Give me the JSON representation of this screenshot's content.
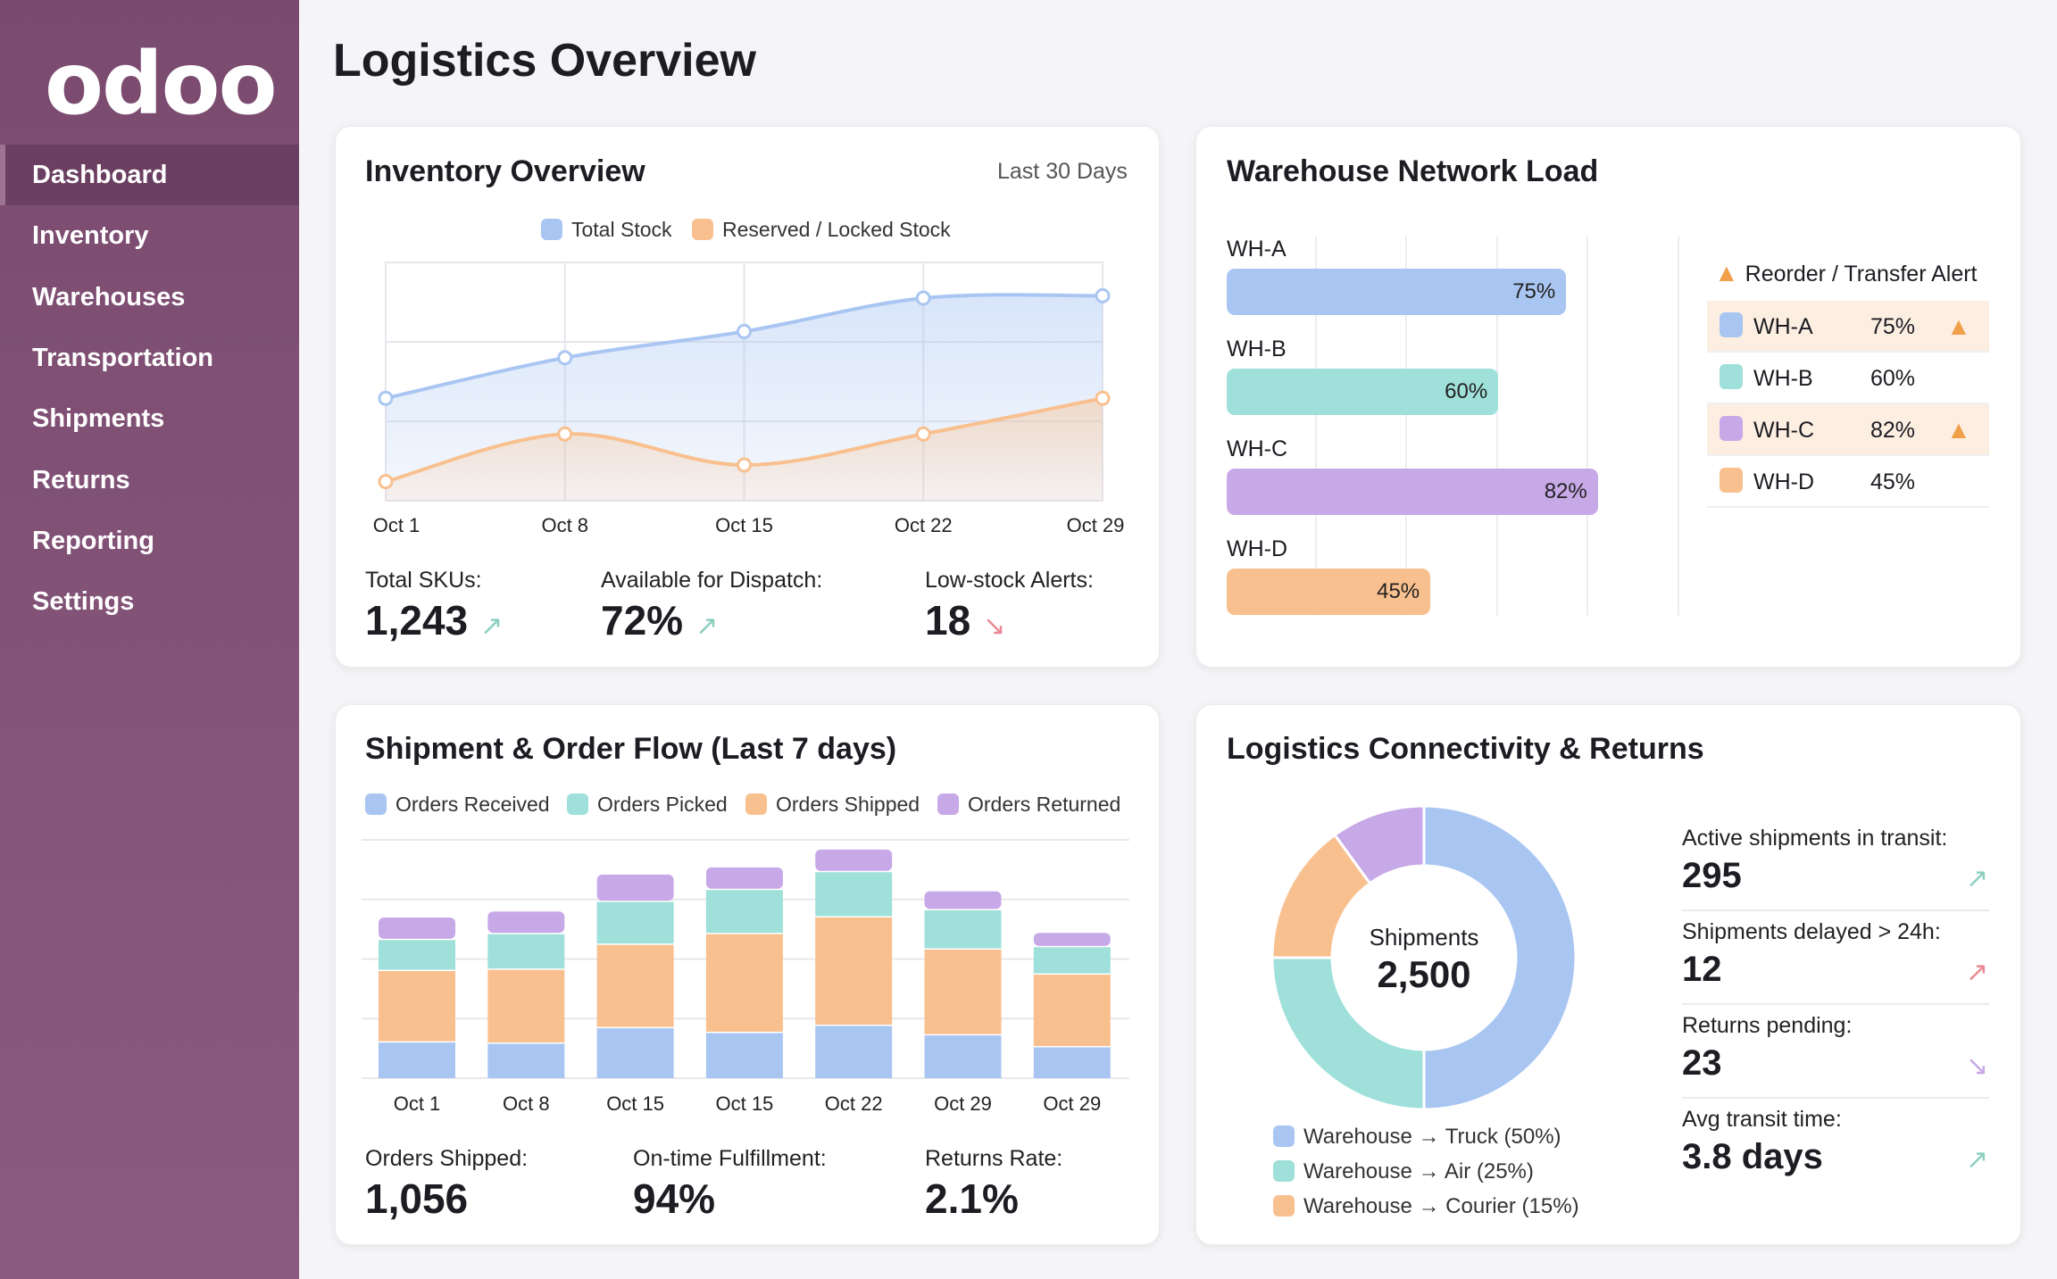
{
  "app": {
    "logo": "odoo",
    "page_title": "Logistics Overview"
  },
  "sidebar": {
    "items": [
      {
        "label": "Dashboard",
        "active": true
      },
      {
        "label": "Inventory"
      },
      {
        "label": "Warehouses"
      },
      {
        "label": "Transportation"
      },
      {
        "label": "Shipments"
      },
      {
        "label": "Returns"
      },
      {
        "label": "Reporting"
      },
      {
        "label": "Settings"
      }
    ]
  },
  "colors": {
    "blue": "#a9c6f2",
    "teal": "#9fe0da",
    "orange": "#f9c08f",
    "purple": "#c8a9e8",
    "sidebar": "#7a4b6f",
    "up": "#8ccfc0",
    "down": "#e98a92",
    "warn": "#f0a04b"
  },
  "inventory": {
    "title": "Inventory Overview",
    "range": "Last 30 Days",
    "stats": [
      {
        "label": "Total SKUs:",
        "value": "1,243",
        "trend": "up",
        "icon": "↗"
      },
      {
        "label": "Available for Dispatch:",
        "value": "72%",
        "trend": "up",
        "icon": "↗"
      },
      {
        "label": "Low-stock Alerts:",
        "value": "18",
        "trend": "down",
        "icon": "↘"
      }
    ]
  },
  "warehouse": {
    "title": "Warehouse Network Load",
    "alert_title": "Reorder / Transfer Alert",
    "rows": [
      {
        "name": "WH-A",
        "value": 75,
        "label": "75%",
        "alert": true,
        "color": "#a9c6f2"
      },
      {
        "name": "WH-B",
        "value": 60,
        "label": "60%",
        "alert": false,
        "color": "#9fe0da"
      },
      {
        "name": "WH-C",
        "value": 82,
        "label": "82%",
        "alert": true,
        "color": "#c8a9e8"
      },
      {
        "name": "WH-D",
        "value": 45,
        "label": "45%",
        "alert": false,
        "color": "#f9c08f"
      }
    ]
  },
  "flow": {
    "title": "Shipment & Order Flow (Last 7 days)",
    "stats": [
      {
        "label": "Orders Shipped:",
        "value": "1,056"
      },
      {
        "label": "On-time Fulfillment:",
        "value": "94%"
      },
      {
        "label": "Returns Rate:",
        "value": "2.1%"
      }
    ]
  },
  "connectivity": {
    "title": "Logistics Connectivity & Returns",
    "center_label": "Shipments",
    "center_value": "2,500",
    "legend": [
      {
        "label": "Warehouse → Truck (50%)",
        "color": "#a9c6f2"
      },
      {
        "label": "Warehouse → Air (25%)",
        "color": "#9fe0da"
      },
      {
        "label": "Warehouse → Courier (15%)",
        "color": "#f9c08f"
      }
    ],
    "stats": [
      {
        "label": "Active shipments in transit:",
        "value": "295",
        "icon": "↗",
        "color": "#8ccfc0"
      },
      {
        "label": "Shipments delayed > 24h:",
        "value": "12",
        "icon": "↗",
        "color": "#e98a92"
      },
      {
        "label": "Returns pending:",
        "value": "23",
        "icon": "↘",
        "color": "#c8a9e8"
      },
      {
        "label": "Avg transit time:",
        "value": "3.8 days",
        "icon": "↗",
        "color": "#8ccfc0"
      }
    ]
  },
  "chart_data": [
    {
      "type": "area",
      "categories": [
        "Oct 1",
        "Oct 8",
        "Oct 15",
        "Oct 22",
        "Oct 29"
      ],
      "ylim": [
        0,
        100
      ],
      "grid": true,
      "legend": "top",
      "series": [
        {
          "name": "Total Stock",
          "values": [
            43,
            60,
            71,
            85,
            86
          ],
          "color": "#a9c6f2"
        },
        {
          "name": "Reserved / Locked Stock",
          "values": [
            8,
            28,
            15,
            28,
            43
          ],
          "color": "#f9c08f"
        }
      ]
    },
    {
      "type": "bar",
      "stacked": true,
      "orientation": "horizontal",
      "categories": [
        "WH-A",
        "WH-B",
        "WH-C",
        "WH-D"
      ],
      "values": [
        75,
        60,
        82,
        45
      ],
      "xlim": [
        0,
        100
      ]
    },
    {
      "type": "bar",
      "stacked": true,
      "categories": [
        "Oct 1",
        "Oct 8",
        "Oct 15",
        "Oct 15",
        "Oct 22",
        "Oct 29",
        "Oct 29"
      ],
      "ylim": [
        0,
        200
      ],
      "grid": true,
      "legend": "top",
      "series": [
        {
          "name": "Orders Received",
          "values": [
            31,
            30,
            43,
            39,
            45,
            37,
            27
          ],
          "color": "#a9c6f2"
        },
        {
          "name": "Orders Picked",
          "values": [
            26,
            30,
            36,
            37,
            38,
            33,
            23
          ],
          "color": "#9fe0da"
        },
        {
          "name": "Orders Shipped",
          "values": [
            60,
            62,
            70,
            83,
            91,
            72,
            61
          ],
          "color": "#f9c08f"
        },
        {
          "name": "Orders Returned",
          "values": [
            19,
            19,
            23,
            19,
            19,
            16,
            12
          ],
          "color": "#c8a9e8"
        }
      ]
    },
    {
      "type": "pie",
      "donut": true,
      "values": [
        50,
        25,
        15,
        10
      ],
      "labels": [
        "Warehouse → Truck (50%)",
        "Warehouse → Air (25%)",
        "Warehouse → Courier (15%)",
        ""
      ],
      "colors": [
        "#a9c6f2",
        "#9fe0da",
        "#f9c08f",
        "#c8a9e8"
      ]
    }
  ]
}
